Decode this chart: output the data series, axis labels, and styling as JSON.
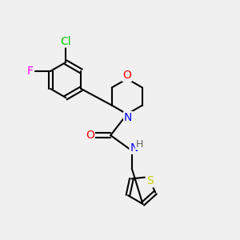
{
  "background_color": "#f0f0f0",
  "atom_colors": {
    "C": "#000000",
    "H": "#808080",
    "N": "#0000ff",
    "O": "#ff0000",
    "S": "#cccc00",
    "Cl": "#00cc00",
    "F": "#ff00ff"
  },
  "bond_color": "#000000",
  "bond_width": 1.5,
  "font_size": 9,
  "xlim": [
    0.0,
    1.0
  ],
  "ylim": [
    0.0,
    1.0
  ]
}
